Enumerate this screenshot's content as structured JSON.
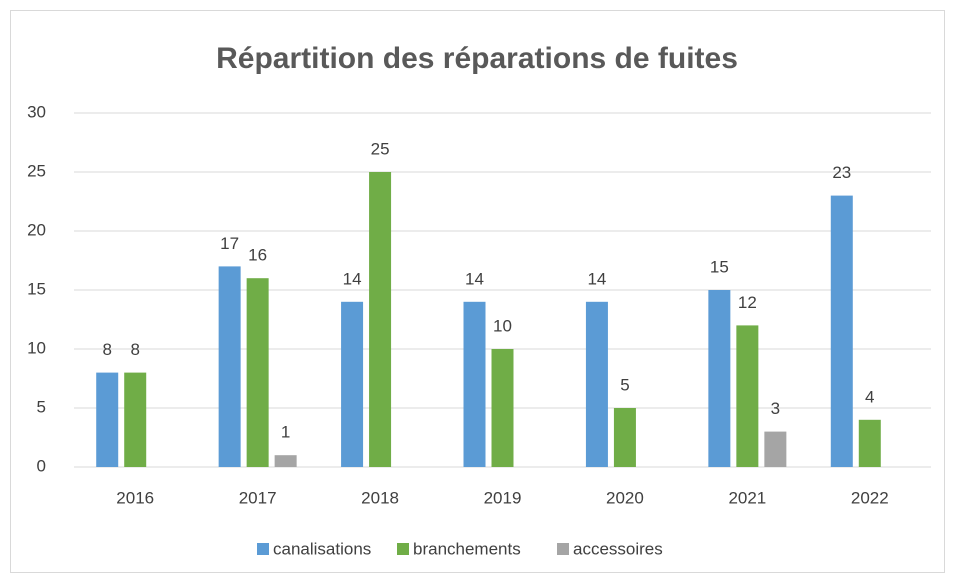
{
  "chart_data": {
    "type": "bar",
    "title": "Répartition des réparations de fuites",
    "categories": [
      "2016",
      "2017",
      "2018",
      "2019",
      "2020",
      "2021",
      "2022"
    ],
    "series": [
      {
        "name": "canalisations",
        "color": "#5b9bd5",
        "values": [
          8,
          17,
          14,
          14,
          14,
          15,
          23
        ]
      },
      {
        "name": "branchements",
        "color": "#70ad47",
        "values": [
          8,
          16,
          25,
          10,
          5,
          12,
          4
        ]
      },
      {
        "name": "accessoires",
        "color": "#a5a5a5",
        "values": [
          null,
          1,
          null,
          null,
          null,
          3,
          null
        ]
      }
    ],
    "ylim": [
      0,
      30
    ],
    "yticks": [
      0,
      5,
      10,
      15,
      20,
      25,
      30
    ],
    "grid": true,
    "legend": "bottom"
  }
}
